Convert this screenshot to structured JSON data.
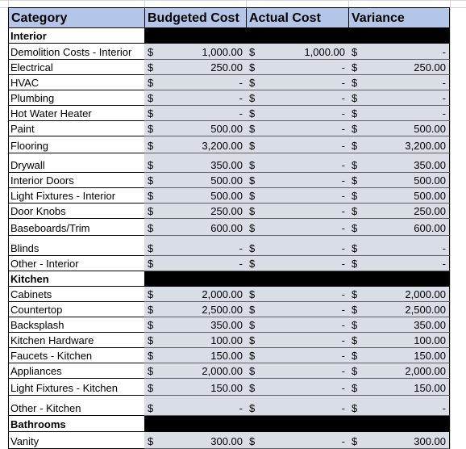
{
  "headers": {
    "category": "Category",
    "budgeted": "Budgeted Cost",
    "actual": "Actual Cost",
    "variance": "Variance"
  },
  "currency_symbol": "$",
  "rows": [
    {
      "kind": "section",
      "label": "Interior"
    },
    {
      "kind": "item",
      "label": "Demolition Costs - Interior",
      "budgeted": "1,000.00",
      "actual": "1,000.00",
      "variance": "-"
    },
    {
      "kind": "item",
      "label": "Electrical",
      "budgeted": "250.00",
      "actual": "-",
      "variance": "250.00"
    },
    {
      "kind": "item",
      "label": "HVAC",
      "budgeted": "-",
      "actual": "-",
      "variance": "-"
    },
    {
      "kind": "item",
      "label": "Plumbing",
      "budgeted": "-",
      "actual": "-",
      "variance": "-"
    },
    {
      "kind": "item",
      "label": "Hot Water Heater",
      "budgeted": "-",
      "actual": "-",
      "variance": "-"
    },
    {
      "kind": "item",
      "label": "Paint",
      "budgeted": "500.00",
      "actual": "-",
      "variance": "500.00"
    },
    {
      "kind": "item",
      "label": "Flooring",
      "budgeted": "3,200.00",
      "actual": "-",
      "variance": "3,200.00"
    },
    {
      "kind": "item",
      "label": "Drywall",
      "budgeted": "350.00",
      "actual": "-",
      "variance": "350.00"
    },
    {
      "kind": "item",
      "label": "Interior Doors",
      "budgeted": "500.00",
      "actual": "-",
      "variance": "500.00"
    },
    {
      "kind": "item",
      "label": "Light Fixtures - Interior",
      "budgeted": "500.00",
      "actual": "-",
      "variance": "500.00"
    },
    {
      "kind": "item",
      "label": "Door Knobs",
      "budgeted": "250.00",
      "actual": "-",
      "variance": "250.00"
    },
    {
      "kind": "item",
      "label": "Baseboards/Trim",
      "budgeted": "600.00",
      "actual": "-",
      "variance": "600.00"
    },
    {
      "kind": "item",
      "label": "Blinds",
      "budgeted": "-",
      "actual": "-",
      "variance": "-"
    },
    {
      "kind": "item",
      "label": "Other - Interior",
      "budgeted": "-",
      "actual": "-",
      "variance": "-"
    },
    {
      "kind": "section",
      "label": "Kitchen"
    },
    {
      "kind": "item",
      "label": "Cabinets",
      "budgeted": "2,000.00",
      "actual": "-",
      "variance": "2,000.00"
    },
    {
      "kind": "item",
      "label": "Countertop",
      "budgeted": "2,500.00",
      "actual": "-",
      "variance": "2,500.00"
    },
    {
      "kind": "item",
      "label": "Backsplash",
      "budgeted": "350.00",
      "actual": "-",
      "variance": "350.00"
    },
    {
      "kind": "item",
      "label": "Kitchen Hardware",
      "budgeted": "100.00",
      "actual": "-",
      "variance": "100.00"
    },
    {
      "kind": "item",
      "label": "Faucets - Kitchen",
      "budgeted": "150.00",
      "actual": "-",
      "variance": "150.00"
    },
    {
      "kind": "item",
      "label": "Appliances",
      "budgeted": "2,000.00",
      "actual": "-",
      "variance": "2,000.00"
    },
    {
      "kind": "item",
      "label": "Light Fixtures - Kitchen",
      "budgeted": "150.00",
      "actual": "-",
      "variance": "150.00"
    },
    {
      "kind": "item",
      "label": "Other - Kitchen",
      "budgeted": "-",
      "actual": "-",
      "variance": "-"
    },
    {
      "kind": "section",
      "label": "Bathrooms"
    },
    {
      "kind": "item",
      "label": "Vanity",
      "budgeted": "300.00",
      "actual": "-",
      "variance": "300.00"
    }
  ]
}
